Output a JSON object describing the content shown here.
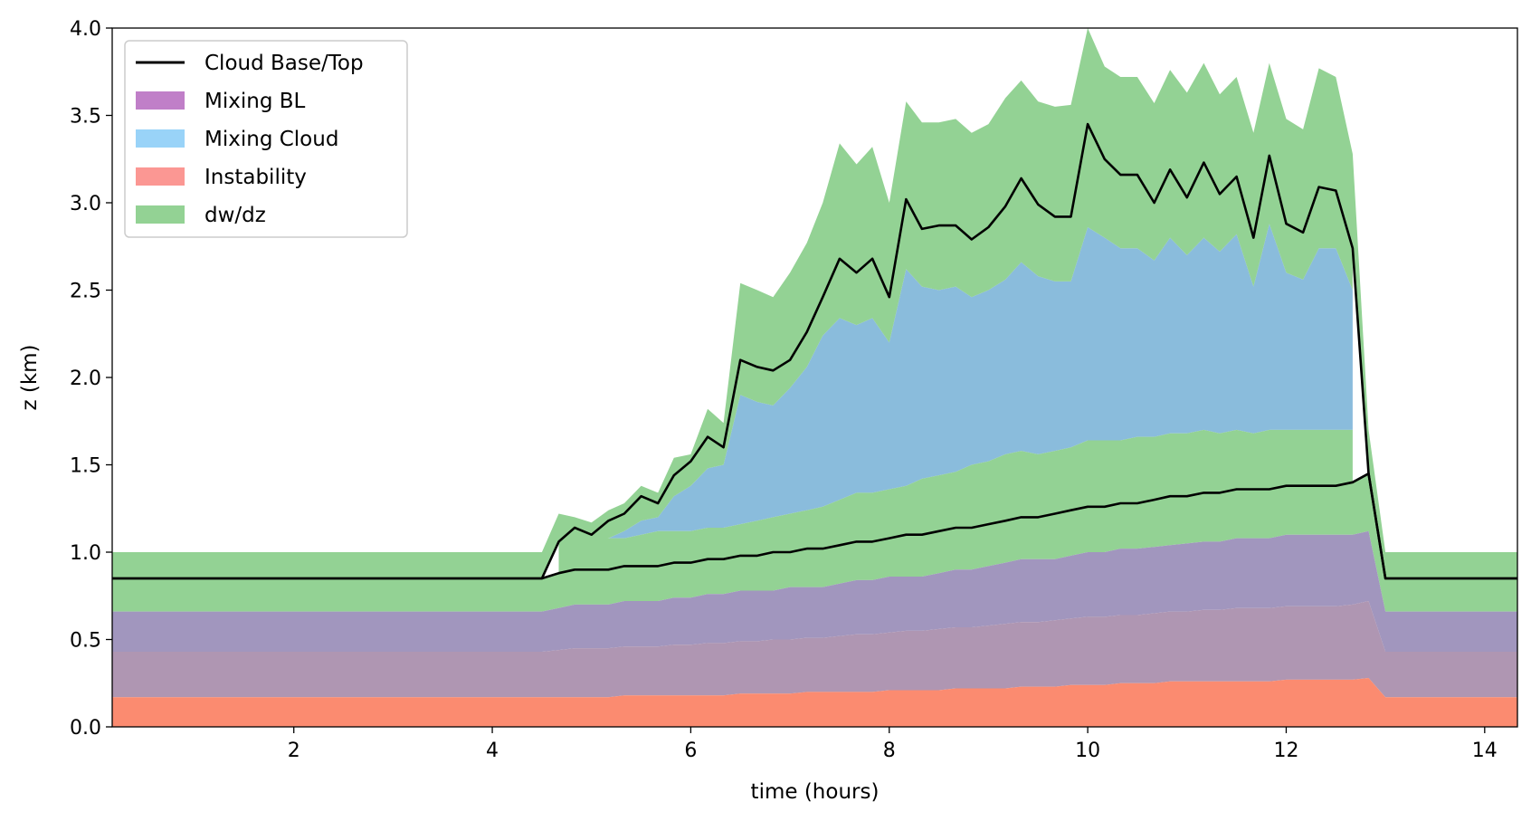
{
  "chart_data": {
    "type": "area",
    "xlabel": "time (hours)",
    "ylabel": "z (km)",
    "xlim": [
      0.17,
      14.33
    ],
    "ylim": [
      0,
      4.0
    ],
    "x_ticks": [
      2,
      4,
      6,
      8,
      10,
      12,
      14
    ],
    "y_ticks": [
      "0.0",
      "0.5",
      "1.0",
      "1.5",
      "2.0",
      "2.5",
      "3.0",
      "3.5",
      "4.0"
    ],
    "grid": false,
    "legend_position": "top-left",
    "legend": [
      {
        "label": "Cloud Base/Top",
        "kind": "line",
        "color": "#000000"
      },
      {
        "label": "Mixing BL",
        "kind": "patch",
        "color": "#c07fc8"
      },
      {
        "label": "Mixing Cloud",
        "kind": "patch",
        "color": "#99d3f8"
      },
      {
        "label": "Instability",
        "kind": "patch",
        "color": "#fb9793"
      },
      {
        "label": "dw/dz",
        "kind": "patch",
        "color": "#93d294"
      }
    ],
    "colors": {
      "dwdz": "#93d294",
      "mixing_bl": "#a196be",
      "instability": "#fb8b70",
      "mixing_cloud": "#8abcdc",
      "overlap_purple": "#af96b2",
      "line": "#000000"
    },
    "time": [
      0.17,
      4.5,
      4.67,
      4.83,
      5.0,
      5.17,
      5.33,
      5.5,
      5.67,
      5.83,
      6.0,
      6.17,
      6.33,
      6.5,
      6.67,
      6.83,
      7.0,
      7.17,
      7.33,
      7.5,
      7.67,
      7.83,
      8.0,
      8.17,
      8.33,
      8.5,
      8.67,
      8.83,
      9.0,
      9.17,
      9.33,
      9.5,
      9.67,
      9.83,
      10.0,
      10.17,
      10.33,
      10.5,
      10.67,
      10.83,
      11.0,
      11.17,
      11.33,
      11.5,
      11.67,
      11.83,
      12.0,
      12.17,
      12.33,
      12.5,
      12.67,
      12.83,
      13.0,
      14.33
    ],
    "series": [
      {
        "name": "Cloud Base/Top",
        "role": "cloud_top",
        "values": [
          0.85,
          0.85,
          1.06,
          1.14,
          1.1,
          1.18,
          1.22,
          1.32,
          1.28,
          1.44,
          1.52,
          1.66,
          1.6,
          2.1,
          2.06,
          2.04,
          2.1,
          2.26,
          2.46,
          2.68,
          2.6,
          2.68,
          2.46,
          3.02,
          2.85,
          2.87,
          2.87,
          2.79,
          2.86,
          2.98,
          3.14,
          2.99,
          2.92,
          2.92,
          3.45,
          3.25,
          3.16,
          3.16,
          3.0,
          3.19,
          3.03,
          3.23,
          3.05,
          3.15,
          2.8,
          3.27,
          2.88,
          2.83,
          3.09,
          3.07,
          2.74,
          1.45,
          0.85,
          0.85
        ]
      },
      {
        "name": "Cloud Base/Top",
        "role": "cloud_base",
        "values": [
          0.85,
          0.85,
          0.88,
          0.9,
          0.9,
          0.9,
          0.92,
          0.92,
          0.92,
          0.94,
          0.94,
          0.96,
          0.96,
          0.98,
          0.98,
          1.0,
          1.0,
          1.02,
          1.02,
          1.04,
          1.06,
          1.06,
          1.08,
          1.1,
          1.1,
          1.12,
          1.14,
          1.14,
          1.16,
          1.18,
          1.2,
          1.2,
          1.22,
          1.24,
          1.26,
          1.26,
          1.28,
          1.28,
          1.3,
          1.32,
          1.32,
          1.34,
          1.34,
          1.36,
          1.36,
          1.36,
          1.38,
          1.38,
          1.38,
          1.38,
          1.4,
          1.45,
          0.85,
          0.85
        ]
      },
      {
        "name": "dw/dz",
        "role": "dwdz_top",
        "values": [
          1.0,
          1.0,
          1.22,
          1.2,
          1.17,
          1.24,
          1.28,
          1.38,
          1.34,
          1.54,
          1.56,
          1.82,
          1.74,
          2.54,
          2.5,
          2.46,
          2.6,
          2.77,
          3.0,
          3.34,
          3.22,
          3.32,
          3.0,
          3.58,
          3.46,
          3.46,
          3.48,
          3.4,
          3.45,
          3.6,
          3.7,
          3.58,
          3.55,
          3.56,
          4.0,
          3.78,
          3.72,
          3.72,
          3.57,
          3.76,
          3.63,
          3.8,
          3.62,
          3.72,
          3.4,
          3.8,
          3.48,
          3.42,
          3.77,
          3.72,
          3.28,
          1.7,
          1.0,
          1.0
        ]
      },
      {
        "name": "dw/dz",
        "role": "dwdz_base",
        "values": [
          0.66,
          0.66,
          0.68,
          0.7,
          0.7,
          0.7,
          0.72,
          0.72,
          0.72,
          0.74,
          0.74,
          0.76,
          0.76,
          0.78,
          0.78,
          0.78,
          0.8,
          0.8,
          0.8,
          0.82,
          0.84,
          0.84,
          0.86,
          0.86,
          0.86,
          0.88,
          0.9,
          0.9,
          0.92,
          0.94,
          0.96,
          0.96,
          0.96,
          0.98,
          1.0,
          1.0,
          1.02,
          1.02,
          1.03,
          1.04,
          1.05,
          1.06,
          1.06,
          1.08,
          1.08,
          1.08,
          1.1,
          1.1,
          1.1,
          1.1,
          1.1,
          1.12,
          0.66,
          0.66
        ]
      },
      {
        "name": "Mixing Cloud",
        "role": "mixing_cloud_top",
        "values": [
          null,
          null,
          1.02,
          1.02,
          1.04,
          1.08,
          1.12,
          1.18,
          1.2,
          1.32,
          1.38,
          1.48,
          1.5,
          1.9,
          1.86,
          1.84,
          1.94,
          2.06,
          2.24,
          2.34,
          2.3,
          2.34,
          2.2,
          2.62,
          2.52,
          2.5,
          2.52,
          2.46,
          2.5,
          2.56,
          2.66,
          2.58,
          2.55,
          2.55,
          2.86,
          2.8,
          2.74,
          2.74,
          2.67,
          2.8,
          2.7,
          2.8,
          2.72,
          2.82,
          2.52,
          2.88,
          2.6,
          2.56,
          2.74,
          2.74,
          2.5,
          null,
          null,
          null
        ]
      },
      {
        "name": "Mixing Cloud",
        "role": "mixing_cloud_base",
        "values": [
          null,
          null,
          1.04,
          1.04,
          1.06,
          1.08,
          1.08,
          1.1,
          1.12,
          1.12,
          1.12,
          1.14,
          1.14,
          1.16,
          1.18,
          1.2,
          1.22,
          1.24,
          1.26,
          1.3,
          1.34,
          1.34,
          1.36,
          1.38,
          1.42,
          1.44,
          1.46,
          1.5,
          1.52,
          1.56,
          1.58,
          1.56,
          1.58,
          1.6,
          1.64,
          1.64,
          1.64,
          1.66,
          1.66,
          1.68,
          1.68,
          1.7,
          1.68,
          1.7,
          1.68,
          1.7,
          1.7,
          1.7,
          1.7,
          1.7,
          1.7,
          null,
          null,
          null
        ]
      },
      {
        "name": "Mixing BL",
        "role": "mixing_bl_top",
        "values": [
          0.66,
          0.66,
          0.68,
          0.7,
          0.7,
          0.7,
          0.72,
          0.72,
          0.72,
          0.74,
          0.74,
          0.76,
          0.76,
          0.78,
          0.78,
          0.78,
          0.8,
          0.8,
          0.8,
          0.82,
          0.84,
          0.84,
          0.86,
          0.86,
          0.86,
          0.88,
          0.9,
          0.9,
          0.92,
          0.94,
          0.96,
          0.96,
          0.96,
          0.98,
          1.0,
          1.0,
          1.02,
          1.02,
          1.03,
          1.04,
          1.05,
          1.06,
          1.06,
          1.08,
          1.08,
          1.08,
          1.1,
          1.1,
          1.1,
          1.1,
          1.1,
          1.12,
          0.66,
          0.66
        ]
      },
      {
        "name": "Mixing BL",
        "role": "mixing_bl_bottom",
        "values": [
          0.43,
          0.43,
          0.44,
          0.45,
          0.45,
          0.45,
          0.46,
          0.46,
          0.46,
          0.47,
          0.47,
          0.48,
          0.48,
          0.49,
          0.49,
          0.5,
          0.5,
          0.51,
          0.51,
          0.52,
          0.53,
          0.53,
          0.54,
          0.55,
          0.55,
          0.56,
          0.57,
          0.57,
          0.58,
          0.59,
          0.6,
          0.6,
          0.61,
          0.62,
          0.63,
          0.63,
          0.64,
          0.64,
          0.65,
          0.66,
          0.66,
          0.67,
          0.67,
          0.68,
          0.68,
          0.68,
          0.69,
          0.69,
          0.69,
          0.69,
          0.7,
          0.72,
          0.43,
          0.43
        ]
      },
      {
        "name": "Instability",
        "role": "instability_top",
        "values": [
          0.17,
          0.17,
          0.17,
          0.17,
          0.17,
          0.17,
          0.18,
          0.18,
          0.18,
          0.18,
          0.18,
          0.18,
          0.18,
          0.19,
          0.19,
          0.19,
          0.19,
          0.2,
          0.2,
          0.2,
          0.2,
          0.2,
          0.21,
          0.21,
          0.21,
          0.21,
          0.22,
          0.22,
          0.22,
          0.22,
          0.23,
          0.23,
          0.23,
          0.24,
          0.24,
          0.24,
          0.25,
          0.25,
          0.25,
          0.26,
          0.26,
          0.26,
          0.26,
          0.26,
          0.26,
          0.26,
          0.27,
          0.27,
          0.27,
          0.27,
          0.27,
          0.28,
          0.17,
          0.17
        ]
      }
    ]
  }
}
